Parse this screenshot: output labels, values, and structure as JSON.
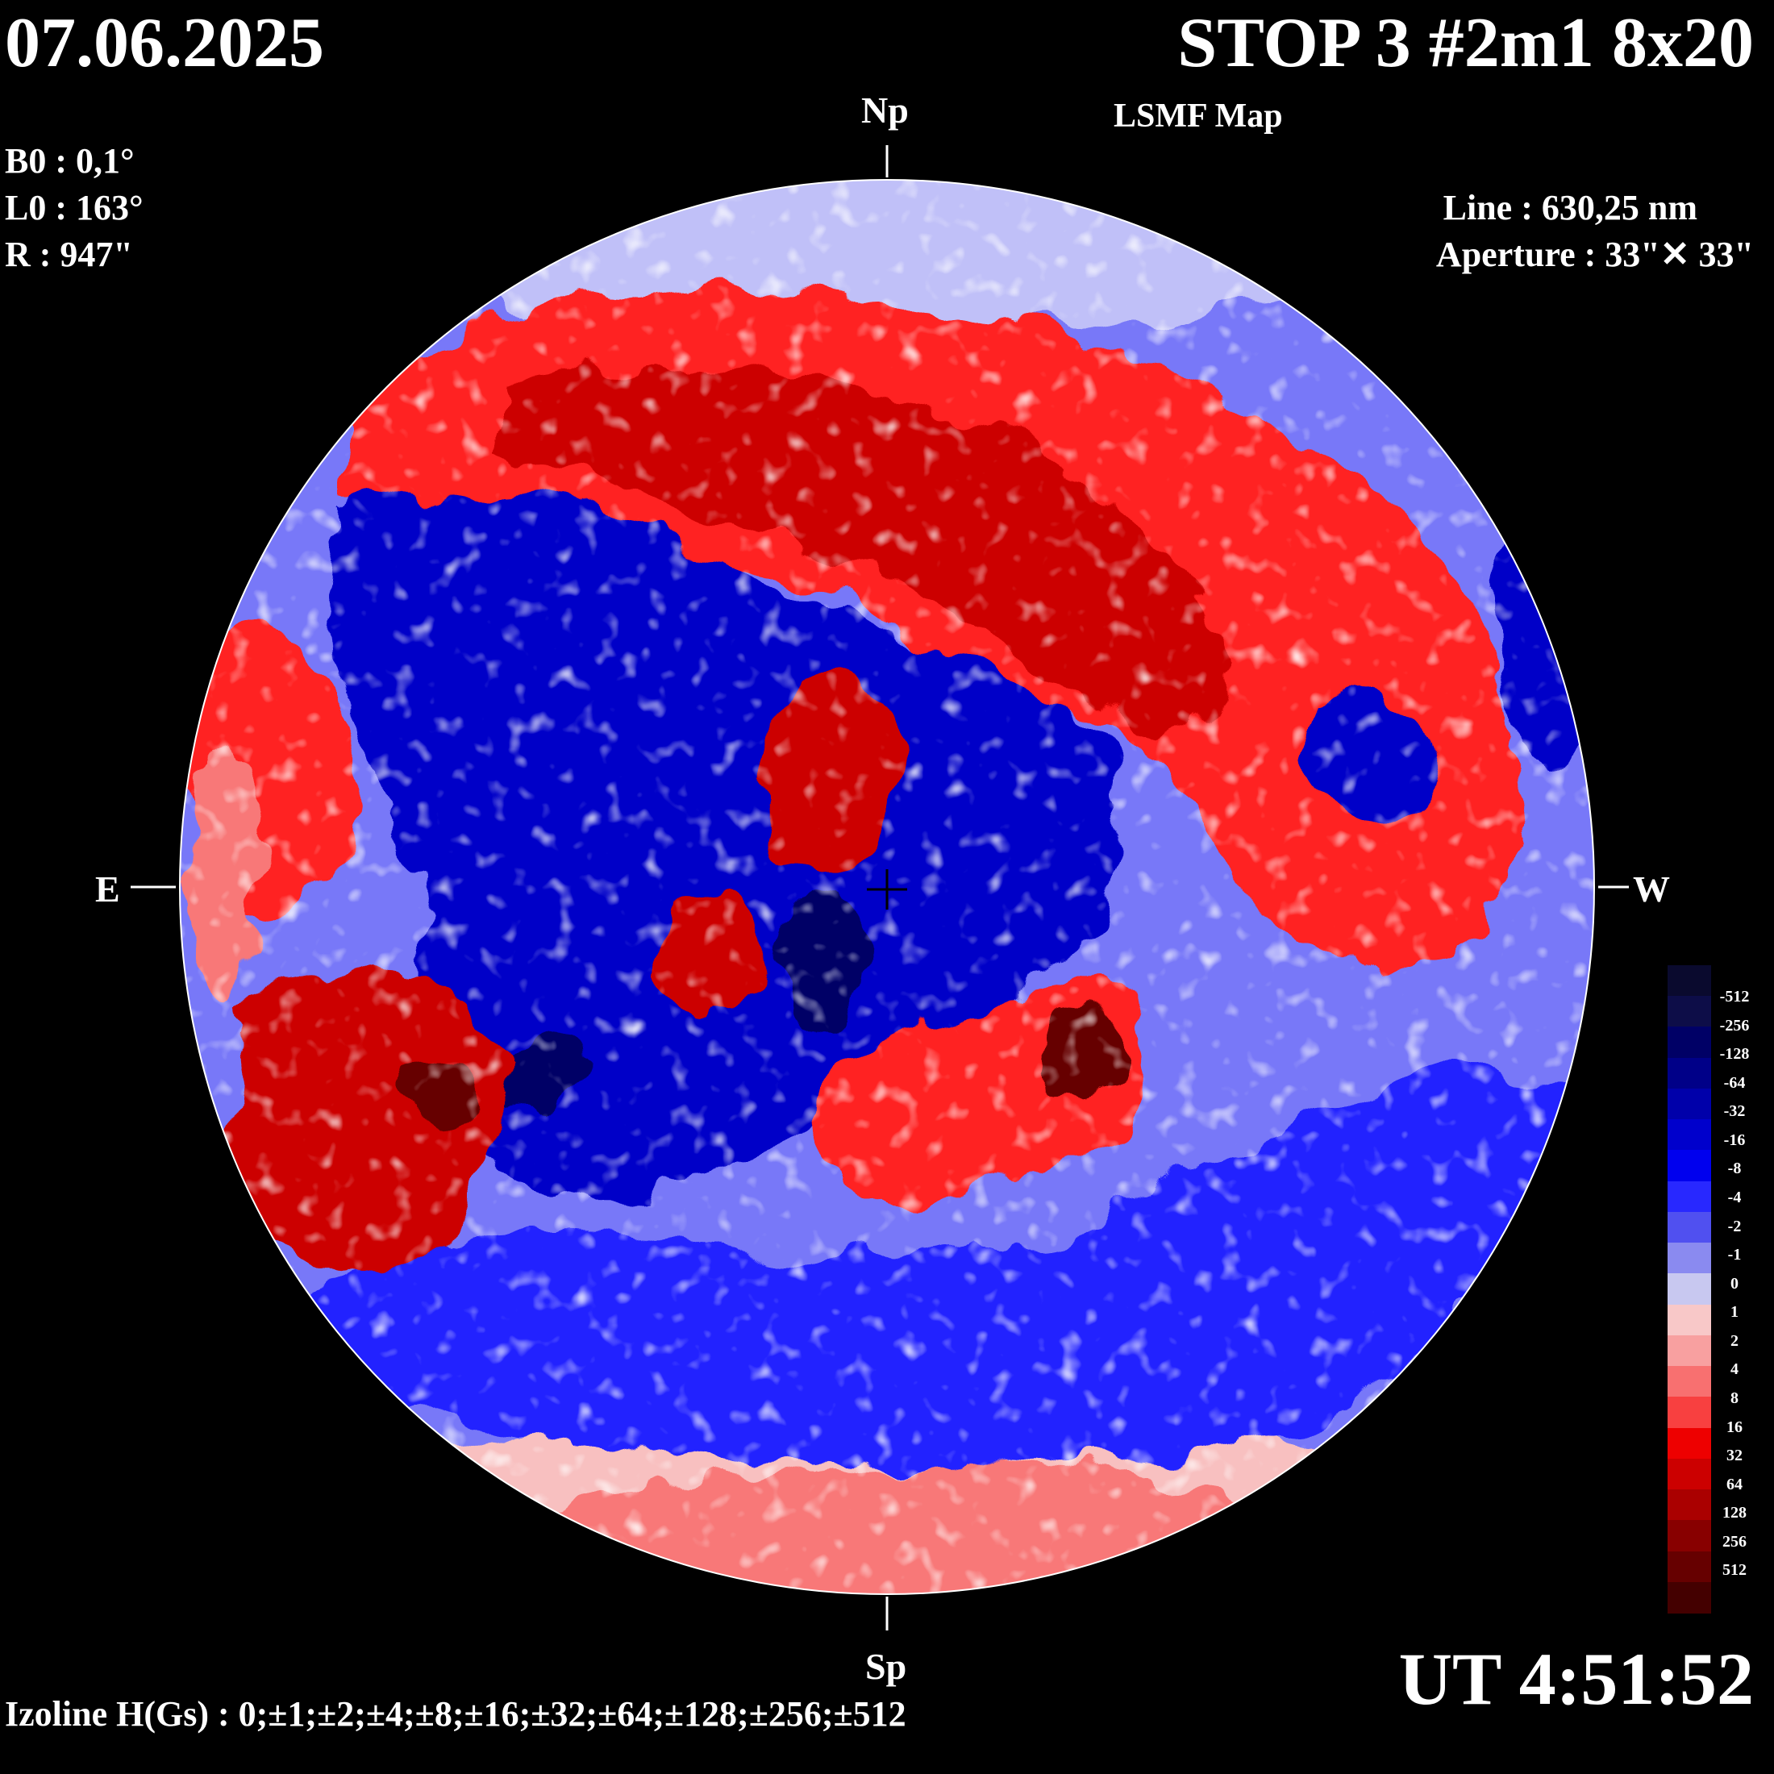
{
  "header": {
    "date": "07.06.2025",
    "title": "STOP 3 #2m1 8x20",
    "subtitle": "LSMF  Map"
  },
  "parameters": {
    "b0": "B0 : 0,1°",
    "l0": "L0 : 163°",
    "r": "R  : 947\""
  },
  "instrument": {
    "line": "Line :  630,25 nm",
    "aperture": "Aperture : 33\"✕ 33\""
  },
  "directions": {
    "north": "Np",
    "south": "Sp",
    "east": "E",
    "west": "W"
  },
  "time": "UT 4:51:52",
  "izoline": "Izoline H(Gs) : 0;±1;±2;±4;±8;±16;±32;±64;±128;±256;±512",
  "colorbar": {
    "labels": [
      "-512",
      "-256",
      "-128",
      "-64",
      "-32",
      "-16",
      "-8",
      "-4",
      "-2",
      "-1",
      "0",
      "1",
      "2",
      "4",
      "8",
      "16",
      "32",
      "64",
      "128",
      "256",
      "512"
    ],
    "colors": [
      "#0a0a2e",
      "#0d0d48",
      "#000066",
      "#000088",
      "#0000aa",
      "#0000cc",
      "#0000ee",
      "#2828ff",
      "#5050f0",
      "#8a8af0",
      "#c8c8f0",
      "#f8c8c8",
      "#f8a0a0",
      "#f87070",
      "#f84040",
      "#ee0000",
      "#cc0000",
      "#aa0000",
      "#880000",
      "#660000",
      "#440000"
    ]
  },
  "map_colors": {
    "red_strong": "#cc0000",
    "red_mid": "#ff2020",
    "red_light": "#f87878",
    "red_pale": "#f8c0c0",
    "blue_strong": "#0000c8",
    "blue_mid": "#2020ff",
    "blue_light": "#7878f8",
    "blue_pale": "#c0c0f8",
    "dark_red": "#660000",
    "dark_blue": "#000066"
  }
}
